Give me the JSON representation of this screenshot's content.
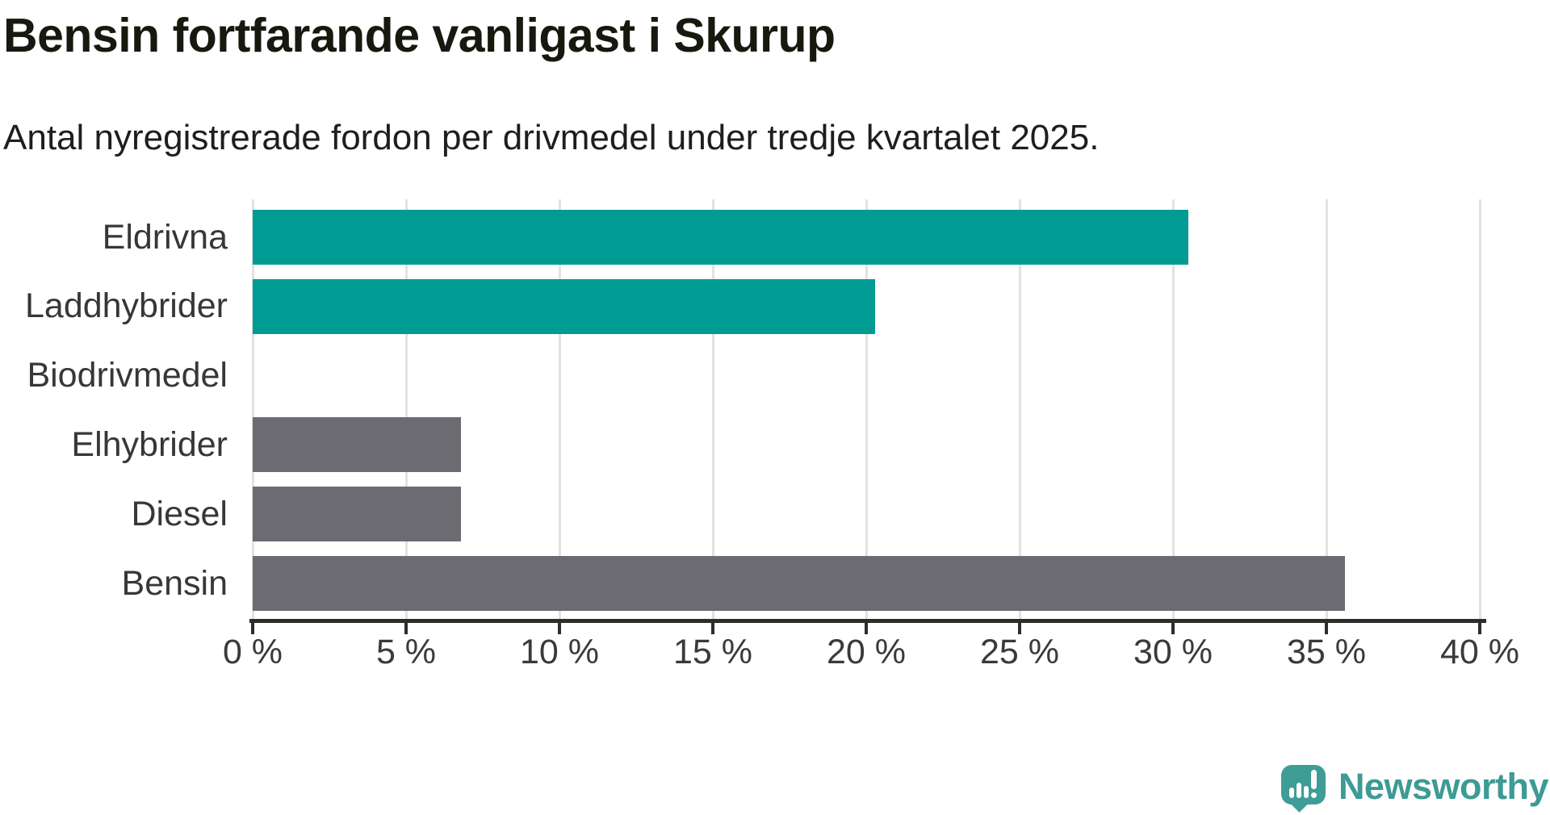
{
  "header": {
    "title": "Bensin fortfarande vanligast i Skurup",
    "subtitle": "Antal nyregistrerade fordon per drivmedel under tredje kvartalet 2025."
  },
  "chart_data": {
    "type": "bar",
    "orientation": "horizontal",
    "title": "Bensin fortfarande vanligast i Skurup",
    "subtitle": "Antal nyregistrerade fordon per drivmedel under tredje kvartalet 2025.",
    "categories": [
      "Eldrivna",
      "Laddhybrider",
      "Biodrivmedel",
      "Elhybrider",
      "Diesel",
      "Bensin"
    ],
    "values": [
      30.5,
      20.3,
      0,
      6.8,
      6.8,
      35.6
    ],
    "unit": "%",
    "bar_colors": [
      "#009b93",
      "#009b93",
      "#009b93",
      "#6c6b71",
      "#6c6b71",
      "#6c6b71"
    ],
    "xlim": [
      0,
      40
    ],
    "x_ticks": [
      0,
      5,
      10,
      15,
      20,
      25,
      30,
      35,
      40
    ],
    "x_tick_labels": [
      "0 %",
      "5 %",
      "10 %",
      "15 %",
      "20 %",
      "25 %",
      "30 %",
      "35 %",
      "40 %"
    ],
    "grid": "vertical",
    "legend": "none"
  },
  "branding": {
    "logo_text": "Newsworthy",
    "logo_icon": "speech-bubble-bar-chart-exclamation",
    "logo_color": "#3d9a94"
  },
  "colors": {
    "teal_bar": "#009b93",
    "gray_bar": "#6c6b71",
    "title_text": "#18180f",
    "body_text": "#373737",
    "gridline": "#e2e2e2",
    "axis_line": "#2d2d2a",
    "background": "#ffffff"
  }
}
